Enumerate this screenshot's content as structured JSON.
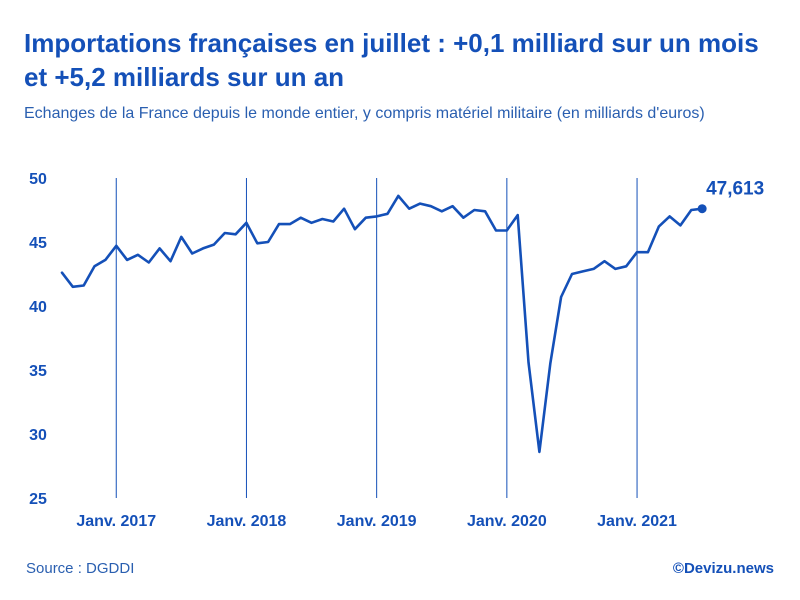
{
  "chart_data": {
    "type": "line",
    "title": "Importations françaises en juillet : +0,1 milliard sur un mois et +5,2 milliards sur un an",
    "subtitle": "Echanges de la France depuis le monde entier, y compris matériel militaire (en milliards d'euros)",
    "xlabel": "",
    "ylabel": "",
    "ylim": [
      25,
      50
    ],
    "yticks": [
      25,
      30,
      35,
      40,
      45,
      50
    ],
    "grid": "vertical lines at January of each year",
    "x_labels": [
      {
        "label": "Janv. 2017",
        "index": 5
      },
      {
        "label": "Janv. 2018",
        "index": 17
      },
      {
        "label": "Janv. 2019",
        "index": 29
      },
      {
        "label": "Janv. 2020",
        "index": 41
      },
      {
        "label": "Janv. 2021",
        "index": 53
      }
    ],
    "series": [
      {
        "values": [
          42.6,
          41.5,
          41.6,
          43.1,
          43.6,
          44.7,
          43.6,
          44.0,
          43.4,
          44.5,
          43.5,
          45.4,
          44.1,
          44.5,
          44.8,
          45.7,
          45.6,
          46.5,
          44.9,
          45.0,
          46.4,
          46.4,
          46.9,
          46.5,
          46.8,
          46.6,
          47.6,
          46.0,
          46.9,
          47.0,
          47.2,
          48.6,
          47.6,
          48.0,
          47.8,
          47.4,
          47.8,
          46.9,
          47.5,
          47.4,
          45.9,
          45.9,
          47.1,
          35.6,
          28.6,
          35.5,
          40.7,
          42.5,
          42.7,
          42.9,
          43.5,
          42.9,
          43.1,
          44.2,
          44.2,
          46.2,
          47.0,
          46.3,
          47.5,
          47.6
        ]
      }
    ],
    "last_label": "47,613",
    "color": "#1450b8"
  },
  "footer": {
    "source": "Source : DGDDI",
    "credit": "©Devizu.news"
  }
}
